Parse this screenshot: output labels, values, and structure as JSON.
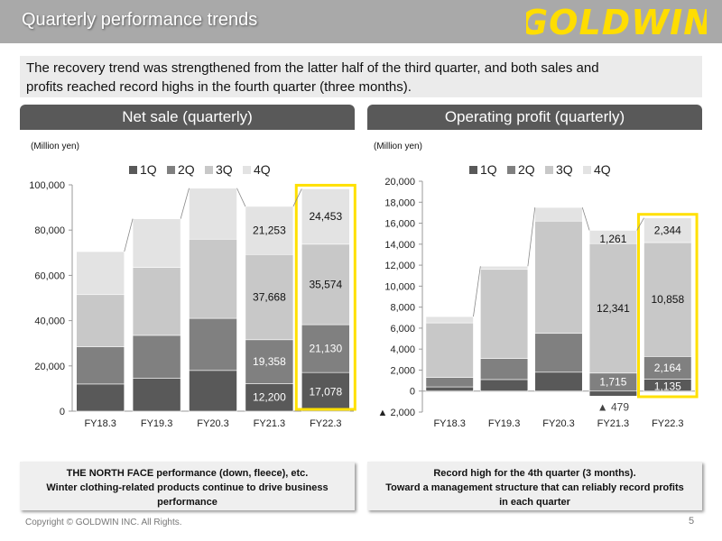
{
  "header": {
    "title": "Quarterly performance trends",
    "logo_text": "GOLDWIN"
  },
  "intro": {
    "line1": "The recovery trend was strengthened from the latter half of the third quarter, and both sales and",
    "line2": "profits reached record highs in the fourth quarter (three months)."
  },
  "colors": {
    "q1": "#595959",
    "q2": "#808080",
    "q3": "#c8c8c8",
    "q4": "#e3e3e3",
    "highlight": "#ffe000",
    "logo": "#ffdd00"
  },
  "net_sale": {
    "header": "Net sale (quarterly)",
    "unit": "(Million yen)"
  },
  "operating_profit": {
    "header": "Operating profit (quarterly)",
    "unit": "(Million yen)"
  },
  "chart_data": [
    {
      "type": "bar",
      "stacked": true,
      "title": "Net sale (quarterly)",
      "ylabel": "(Million yen)",
      "xlabel": "",
      "ylim": [
        0,
        100000
      ],
      "yticks": [
        0,
        20000,
        40000,
        60000,
        80000,
        100000
      ],
      "ytick_labels": [
        "0",
        "20,000",
        "40,000",
        "60,000",
        "80,000",
        "100,000"
      ],
      "categories": [
        "FY18.3",
        "FY19.3",
        "FY20.3",
        "FY21.3",
        "FY22.3"
      ],
      "legend": [
        "1Q",
        "2Q",
        "3Q",
        "4Q"
      ],
      "series": [
        {
          "name": "1Q",
          "values": [
            12000,
            14500,
            18000,
            12200,
            17078
          ]
        },
        {
          "name": "2Q",
          "values": [
            16500,
            19000,
            23000,
            19358,
            21130
          ]
        },
        {
          "name": "3Q",
          "values": [
            23000,
            30000,
            35000,
            37668,
            35574
          ]
        },
        {
          "name": "4Q",
          "values": [
            19000,
            21500,
            22500,
            21253,
            24453
          ]
        }
      ],
      "data_labels": [
        {
          "category": "FY21.3",
          "series": "1Q",
          "text": "12,200"
        },
        {
          "category": "FY21.3",
          "series": "2Q",
          "text": "19,358"
        },
        {
          "category": "FY21.3",
          "series": "3Q",
          "text": "37,668"
        },
        {
          "category": "FY21.3",
          "series": "4Q",
          "text": "21,253"
        },
        {
          "category": "FY22.3",
          "series": "1Q",
          "text": "17,078"
        },
        {
          "category": "FY22.3",
          "series": "2Q",
          "text": "21,130"
        },
        {
          "category": "FY22.3",
          "series": "3Q",
          "text": "35,574"
        },
        {
          "category": "FY22.3",
          "series": "4Q",
          "text": "24,453"
        }
      ],
      "highlight_category": "FY22.3"
    },
    {
      "type": "bar",
      "stacked": true,
      "title": "Operating profit (quarterly)",
      "ylabel": "(Million yen)",
      "xlabel": "",
      "ylim": [
        -2000,
        20000
      ],
      "yticks": [
        -2000,
        0,
        2000,
        4000,
        6000,
        8000,
        10000,
        12000,
        14000,
        16000,
        18000,
        20000
      ],
      "ytick_labels": [
        "▲ 2,000",
        "0",
        "2,000",
        "4,000",
        "6,000",
        "8,000",
        "10,000",
        "12,000",
        "14,000",
        "16,000",
        "18,000",
        "20,000"
      ],
      "categories": [
        "FY18.3",
        "FY19.3",
        "FY20.3",
        "FY21.3",
        "FY22.3"
      ],
      "legend": [
        "1Q",
        "2Q",
        "3Q",
        "4Q"
      ],
      "series": [
        {
          "name": "1Q",
          "values": [
            400,
            1100,
            1800,
            -479,
            1135
          ]
        },
        {
          "name": "2Q",
          "values": [
            900,
            2000,
            3700,
            1715,
            2164
          ]
        },
        {
          "name": "3Q",
          "values": [
            5200,
            8500,
            10700,
            12341,
            10858
          ]
        },
        {
          "name": "4Q",
          "values": [
            600,
            300,
            1300,
            1261,
            2344
          ]
        }
      ],
      "data_labels": [
        {
          "category": "FY21.3",
          "series": "1Q",
          "text": "▲ 479",
          "placement": "below"
        },
        {
          "category": "FY21.3",
          "series": "2Q",
          "text": "1,715"
        },
        {
          "category": "FY21.3",
          "series": "3Q",
          "text": "12,341"
        },
        {
          "category": "FY21.3",
          "series": "4Q",
          "text": "1,261"
        },
        {
          "category": "FY22.3",
          "series": "1Q",
          "text": "1,135"
        },
        {
          "category": "FY22.3",
          "series": "2Q",
          "text": "2,164"
        },
        {
          "category": "FY22.3",
          "series": "3Q",
          "text": "10,858"
        },
        {
          "category": "FY22.3",
          "series": "4Q",
          "text": "2,344"
        }
      ],
      "highlight_category": "FY22.3"
    }
  ],
  "notes": {
    "net": [
      "THE NORTH FACE performance (down, fleece), etc.",
      "Winter clothing-related products continue to drive business",
      "performance"
    ],
    "op": [
      "Record high for the 4th quarter (3 months).",
      "Toward a management structure that can reliably record profits",
      "in each quarter"
    ]
  },
  "footer": {
    "copyright": "Copyright © GOLDWIN INC. All Rights.",
    "page": "5"
  }
}
